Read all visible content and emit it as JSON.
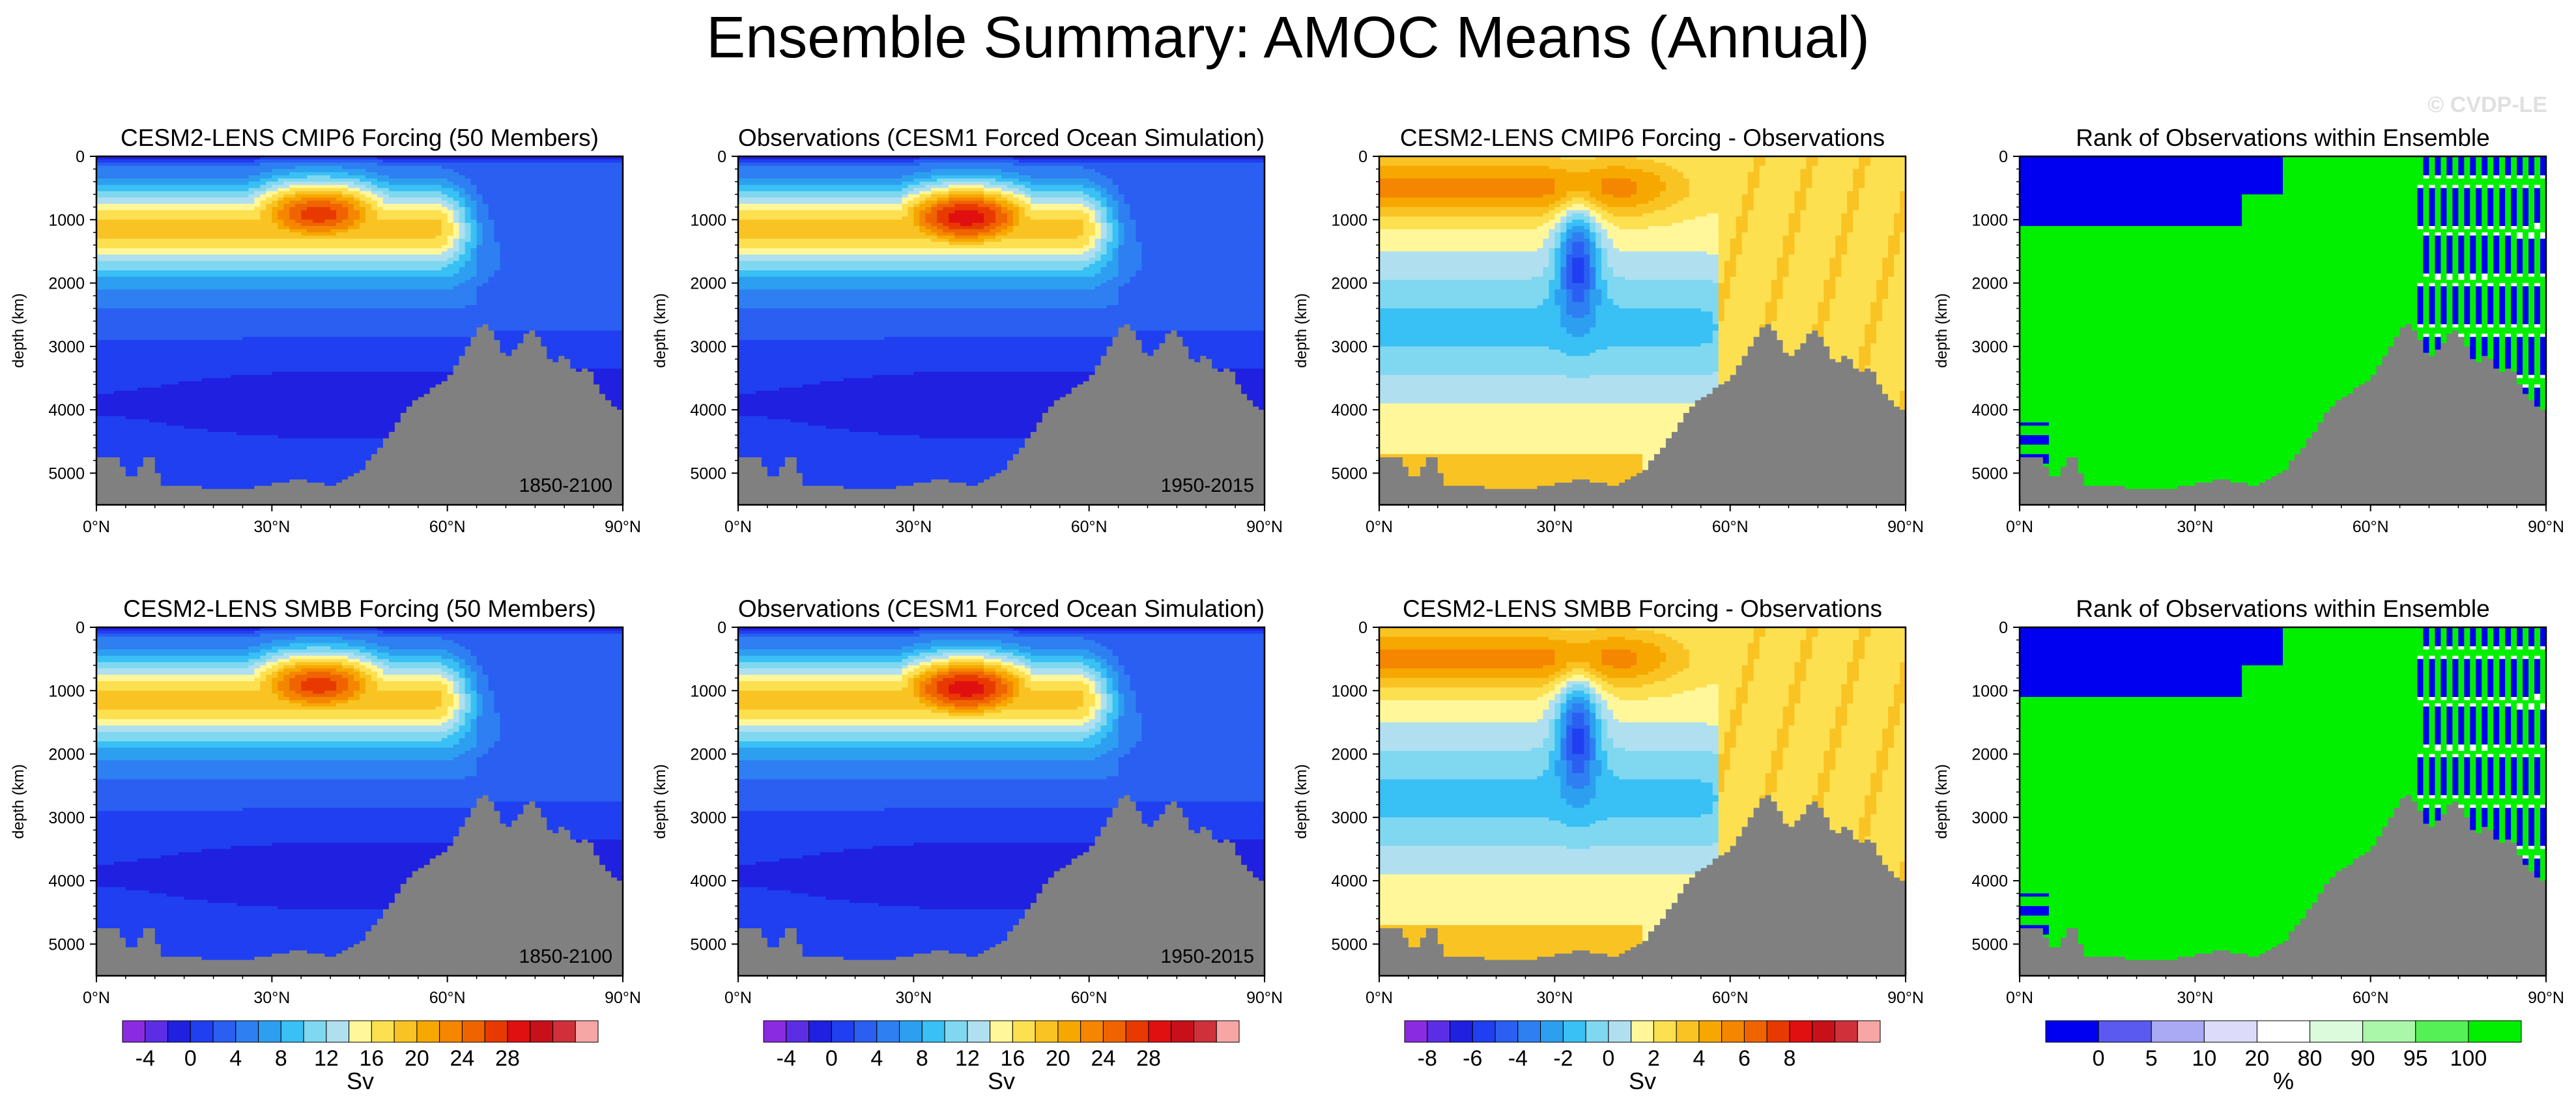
{
  "figure_title": "Ensemble Summary: AMOC Means (Annual)",
  "watermark": "© CVDP-LE",
  "chart_data": [
    {
      "type": "contour",
      "id": "cmip6",
      "title": "CESM2-LENS CMIP6 Forcing (50 Members)",
      "period_label": "1850-2100",
      "ylabel": "depth (km)",
      "x_ticks": [
        "0°N",
        "30°N",
        "60°N",
        "90°N"
      ],
      "y_ticks": [
        "0",
        "1000",
        "2000",
        "3000",
        "4000",
        "5000"
      ],
      "xlim": [
        0,
        90
      ],
      "ylim": [
        5500,
        0
      ],
      "field": "amoc",
      "core": {
        "lat": 38,
        "depth": 900,
        "max_sv": 24
      }
    },
    {
      "type": "contour",
      "id": "obs1",
      "title": "Observations (CESM1 Forced Ocean Simulation)",
      "period_label": "1950-2015",
      "ylabel": "depth (km)",
      "x_ticks": [
        "0°N",
        "30°N",
        "60°N",
        "90°N"
      ],
      "y_ticks": [
        "0",
        "1000",
        "2000",
        "3000",
        "4000",
        "5000"
      ],
      "xlim": [
        0,
        90
      ],
      "ylim": [
        5500,
        0
      ],
      "field": "amoc",
      "core": {
        "lat": 39,
        "depth": 950,
        "max_sv": 26
      }
    },
    {
      "type": "contour",
      "id": "diff1",
      "title": "CESM2-LENS CMIP6 Forcing - Observations",
      "ylabel": "depth (km)",
      "x_ticks": [
        "0°N",
        "30°N",
        "60°N",
        "90°N"
      ],
      "y_ticks": [
        "0",
        "1000",
        "2000",
        "3000",
        "4000",
        "5000"
      ],
      "xlim": [
        0,
        90
      ],
      "ylim": [
        5500,
        0
      ],
      "field": "diff"
    },
    {
      "type": "heatmap",
      "id": "rank1",
      "title": "Rank of Observations within Ensemble",
      "ylabel": "depth (km)",
      "x_ticks": [
        "0°N",
        "30°N",
        "60°N",
        "90°N"
      ],
      "y_ticks": [
        "0",
        "1000",
        "2000",
        "3000",
        "4000",
        "5000"
      ],
      "xlim": [
        0,
        90
      ],
      "ylim": [
        5500,
        0
      ],
      "field": "rank"
    },
    {
      "type": "contour",
      "id": "smbb",
      "title": "CESM2-LENS SMBB Forcing (50 Members)",
      "period_label": "1850-2100",
      "ylabel": "depth (km)",
      "x_ticks": [
        "0°N",
        "30°N",
        "60°N",
        "90°N"
      ],
      "y_ticks": [
        "0",
        "1000",
        "2000",
        "3000",
        "4000",
        "5000"
      ],
      "xlim": [
        0,
        90
      ],
      "ylim": [
        5500,
        0
      ],
      "field": "amoc",
      "core": {
        "lat": 38,
        "depth": 900,
        "max_sv": 24
      }
    },
    {
      "type": "contour",
      "id": "obs2",
      "title": "Observations (CESM1 Forced Ocean Simulation)",
      "period_label": "1950-2015",
      "ylabel": "depth (km)",
      "x_ticks": [
        "0°N",
        "30°N",
        "60°N",
        "90°N"
      ],
      "y_ticks": [
        "0",
        "1000",
        "2000",
        "3000",
        "4000",
        "5000"
      ],
      "xlim": [
        0,
        90
      ],
      "ylim": [
        5500,
        0
      ],
      "field": "amoc",
      "core": {
        "lat": 39,
        "depth": 950,
        "max_sv": 26
      }
    },
    {
      "type": "contour",
      "id": "diff2",
      "title": "CESM2-LENS SMBB Forcing - Observations",
      "ylabel": "depth (km)",
      "x_ticks": [
        "0°N",
        "30°N",
        "60°N",
        "90°N"
      ],
      "y_ticks": [
        "0",
        "1000",
        "2000",
        "3000",
        "4000",
        "5000"
      ],
      "xlim": [
        0,
        90
      ],
      "ylim": [
        5500,
        0
      ],
      "field": "diff"
    },
    {
      "type": "heatmap",
      "id": "rank2",
      "title": "Rank of Observations within Ensemble",
      "ylabel": "depth (km)",
      "x_ticks": [
        "0°N",
        "30°N",
        "60°N",
        "90°N"
      ],
      "y_ticks": [
        "0",
        "1000",
        "2000",
        "3000",
        "4000",
        "5000"
      ],
      "xlim": [
        0,
        90
      ],
      "ylim": [
        5500,
        0
      ],
      "field": "rank"
    }
  ],
  "colorbars": [
    {
      "id": "cb1",
      "unit": "Sv",
      "tick_labels": [
        "-4",
        "0",
        "4",
        "8",
        "12",
        "16",
        "20",
        "24",
        "28"
      ],
      "colors": [
        "#8a2be2",
        "#5b2ee6",
        "#2020e0",
        "#1f3ff0",
        "#2a5ff2",
        "#2e7ff2",
        "#2d9ff0",
        "#39c0f5",
        "#80d8f0",
        "#b0e0f0",
        "#fff79a",
        "#fde050",
        "#f9c323",
        "#f6a800",
        "#f58600",
        "#f06400",
        "#e83a00",
        "#e01010",
        "#c8101a",
        "#d0303a",
        "#f7a6a6"
      ],
      "first_tick_bin": 1,
      "tick_step_bins": 2
    },
    {
      "id": "cb2",
      "unit": "Sv",
      "tick_labels": [
        "-4",
        "0",
        "4",
        "8",
        "12",
        "16",
        "20",
        "24",
        "28"
      ],
      "colors": [
        "#8a2be2",
        "#5b2ee6",
        "#2020e0",
        "#1f3ff0",
        "#2a5ff2",
        "#2e7ff2",
        "#2d9ff0",
        "#39c0f5",
        "#80d8f0",
        "#b0e0f0",
        "#fff79a",
        "#fde050",
        "#f9c323",
        "#f6a800",
        "#f58600",
        "#f06400",
        "#e83a00",
        "#e01010",
        "#c8101a",
        "#d0303a",
        "#f7a6a6"
      ],
      "first_tick_bin": 1,
      "tick_step_bins": 2
    },
    {
      "id": "cb3",
      "unit": "Sv",
      "tick_labels": [
        "-8",
        "-6",
        "-4",
        "-2",
        "0",
        "2",
        "4",
        "6",
        "8"
      ],
      "colors": [
        "#8a2be2",
        "#5b2ee6",
        "#2020e0",
        "#1f3ff0",
        "#2a5ff2",
        "#2e7ff2",
        "#2d9ff0",
        "#39c0f5",
        "#80d8f0",
        "#b0e0f0",
        "#fff79a",
        "#fde050",
        "#f9c323",
        "#f6a800",
        "#f58600",
        "#f06400",
        "#e83a00",
        "#e01010",
        "#c8101a",
        "#d0303a",
        "#f7a6a6"
      ],
      "first_tick_bin": 1,
      "tick_step_bins": 2
    },
    {
      "id": "cb4",
      "unit": "%",
      "tick_labels": [
        "0",
        "5",
        "10",
        "20",
        "80",
        "90",
        "95",
        "100"
      ],
      "colors": [
        "#0000f0",
        "#5a5af0",
        "#a9a9f4",
        "#dcdcfa",
        "#ffffff",
        "#dcfadc",
        "#aaf7aa",
        "#55f055",
        "#00f000"
      ],
      "tick_after_bins": [
        1,
        2,
        3,
        4,
        5,
        6,
        7,
        8
      ]
    }
  ]
}
